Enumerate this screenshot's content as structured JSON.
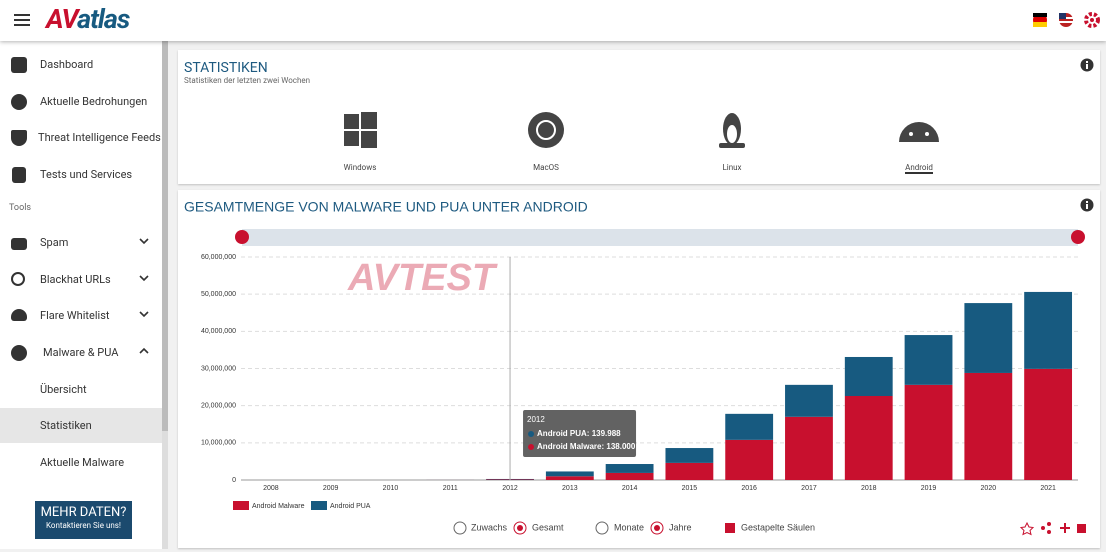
{
  "header": {
    "logo_av": "AV",
    "logo_atlas": "atlas"
  },
  "sidebar": {
    "items": [
      "Dashboard",
      "Aktuelle Bedrohungen",
      "Threat Intelligence Feeds",
      "Tests und Services"
    ],
    "section": "Tools",
    "tools": [
      "Spam",
      "Blackhat URLs",
      "Flare Whitelist",
      "Malware & PUA"
    ],
    "subitems": [
      "Übersicht",
      "Statistiken",
      "Aktuelle Malware"
    ],
    "cta_title": "MEHR DATEN?",
    "cta_text": "Kontaktieren Sie uns!"
  },
  "stats": {
    "title": "STATISTIKEN",
    "subtitle": "Statistiken der letzten zwei Wochen",
    "platforms": [
      "Windows",
      "MacOS",
      "Linux",
      "Android"
    ]
  },
  "controls": {
    "options": [
      "Zuwachs",
      "Gesamt",
      "Monate",
      "Jahre"
    ],
    "checkbox": "Gestapelte Säulen"
  },
  "chart_data": {
    "type": "bar",
    "stacked": true,
    "title": "GESAMTMENGE VON MALWARE UND PUA UNTER ANDROID",
    "watermark": "AVTEST",
    "categories": [
      "2008",
      "2009",
      "2010",
      "2011",
      "2012",
      "2013",
      "2014",
      "2015",
      "2016",
      "2017",
      "2018",
      "2019",
      "2020",
      "2021"
    ],
    "series": [
      {
        "name": "Android Malware",
        "color": "#c8102e",
        "values": [
          0,
          0,
          0,
          10000,
          138000,
          1000000,
          1900000,
          4600000,
          10800000,
          17000000,
          22600000,
          25600000,
          28800000,
          29900000
        ]
      },
      {
        "name": "Android PUA",
        "color": "#175a80",
        "values": [
          0,
          0,
          0,
          10000,
          139988,
          1300000,
          2400000,
          4000000,
          7000000,
          8600000,
          10500000,
          13400000,
          18800000,
          20700000
        ]
      }
    ],
    "ylim": [
      0,
      60000000
    ],
    "yticks": [
      0,
      {
        "value": 10000000,
        "label": "10,000,000"
      },
      {
        "value": 20000000,
        "label": "20,000,000"
      },
      {
        "value": 30000000,
        "label": "30,000,000"
      },
      {
        "value": 40000000,
        "label": "40,000,000"
      },
      {
        "value": 50000000,
        "label": "50,000,000"
      },
      {
        "value": 60000000,
        "label": "60,000,000"
      }
    ],
    "grid": true,
    "tooltip": {
      "title": "2012",
      "lines": [
        "Android PUA: 139.988",
        "Android Malware: 138.000"
      ]
    }
  }
}
